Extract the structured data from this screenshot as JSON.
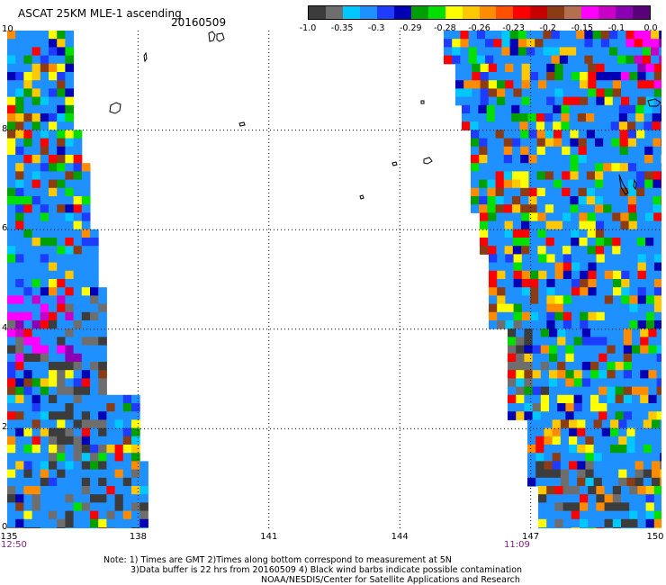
{
  "header": {
    "title": "ASCAT 25KM MLE-1 ascending",
    "date": "20160509"
  },
  "colorbar": {
    "colors": [
      "#3c3c3c",
      "#6e6e6e",
      "#00c8ff",
      "#1e90ff",
      "#1e3cff",
      "#0000b4",
      "#00a000",
      "#00e000",
      "#ffff00",
      "#ffc800",
      "#ff8c00",
      "#ff5000",
      "#ff0000",
      "#c80000",
      "#8c3c14",
      "#b46e50",
      "#ff00ff",
      "#c800c8",
      "#8c00b4",
      "#5a0078"
    ],
    "labels": [
      "-1.0",
      "-0.35",
      "-0.3",
      "-0.29",
      "-0.28",
      "-0.26",
      "-0.23",
      "-0.2",
      "-0.15",
      "-0.1",
      "0.0"
    ],
    "label_positions_frac": [
      0,
      0.1,
      0.2,
      0.3,
      0.4,
      0.5,
      0.6,
      0.7,
      0.8,
      0.9,
      1.0
    ]
  },
  "axes": {
    "y_ticks": [
      "10",
      "8",
      "6",
      "4",
      "2",
      "0"
    ],
    "x_ticks": [
      "135",
      "138",
      "141",
      "144",
      "147",
      "150"
    ],
    "lon_range": [
      135,
      150
    ],
    "lat_range": [
      0,
      10
    ]
  },
  "swath_times": {
    "left": "12:50",
    "right": "11:09"
  },
  "notes": {
    "line1": "Note: 1) Times are GMT 2)Times along bottom correspond to measurement at 5N",
    "line2": "3)Data buffer is 22 hrs from 20160509 4) Black wind barbs indicate possible contamination",
    "line3": "NOAA/NESDIS/Center for Satellite Applications and Research"
  }
}
